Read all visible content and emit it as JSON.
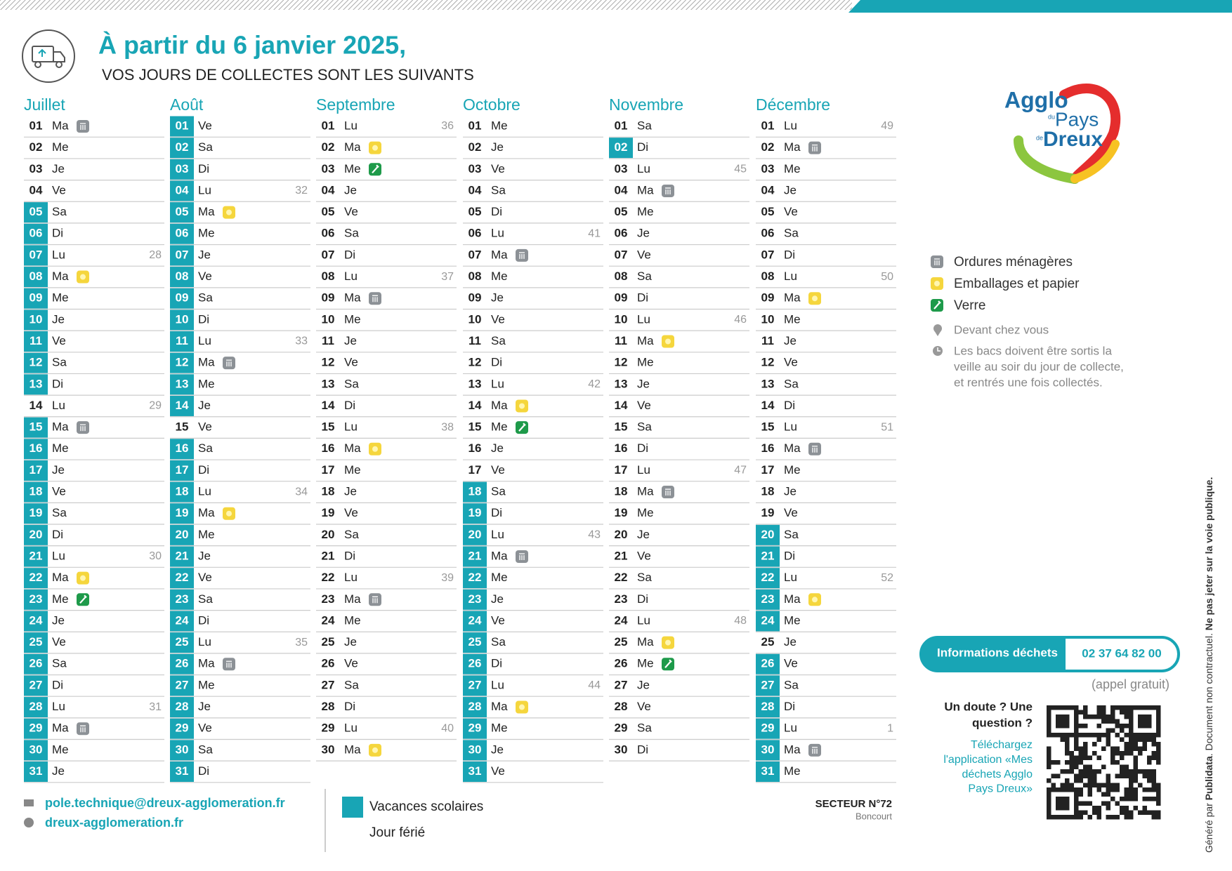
{
  "header": {
    "title": "À partir du 6 janvier 2025,",
    "subtitle": "VOS JOURS DE COLLECTES SONT LES SUIVANTS"
  },
  "logo": {
    "agglo": "Agglo",
    "du": "du",
    "pays": "Pays",
    "de": "de",
    "dreux": "Dreux"
  },
  "calendar": {
    "vacances_color": "#18a5b5",
    "months": [
      {
        "name": "Juillet",
        "days": [
          {
            "d": "01",
            "w": "Ma",
            "bin": 0
          },
          {
            "d": "02",
            "w": "Me"
          },
          {
            "d": "03",
            "w": "Je"
          },
          {
            "d": "04",
            "w": "Ve"
          },
          {
            "d": "05",
            "w": "Sa",
            "vac": true
          },
          {
            "d": "06",
            "w": "Di",
            "vac": true
          },
          {
            "d": "07",
            "w": "Lu",
            "wk": "28",
            "vac": true
          },
          {
            "d": "08",
            "w": "Ma",
            "bin": 1,
            "vac": true
          },
          {
            "d": "09",
            "w": "Me",
            "vac": true
          },
          {
            "d": "10",
            "w": "Je",
            "vac": true
          },
          {
            "d": "11",
            "w": "Ve",
            "vac": true
          },
          {
            "d": "12",
            "w": "Sa",
            "vac": true
          },
          {
            "d": "13",
            "w": "Di",
            "vac": true
          },
          {
            "d": "14",
            "w": "Lu",
            "wk": "29"
          },
          {
            "d": "15",
            "w": "Ma",
            "bin": 0,
            "vac": true
          },
          {
            "d": "16",
            "w": "Me",
            "vac": true
          },
          {
            "d": "17",
            "w": "Je",
            "vac": true
          },
          {
            "d": "18",
            "w": "Ve",
            "vac": true
          },
          {
            "d": "19",
            "w": "Sa",
            "vac": true
          },
          {
            "d": "20",
            "w": "Di",
            "vac": true
          },
          {
            "d": "21",
            "w": "Lu",
            "wk": "30",
            "vac": true
          },
          {
            "d": "22",
            "w": "Ma",
            "bin": 1,
            "vac": true
          },
          {
            "d": "23",
            "w": "Me",
            "bin": 2,
            "vac": true
          },
          {
            "d": "24",
            "w": "Je",
            "vac": true
          },
          {
            "d": "25",
            "w": "Ve",
            "vac": true
          },
          {
            "d": "26",
            "w": "Sa",
            "vac": true
          },
          {
            "d": "27",
            "w": "Di",
            "vac": true
          },
          {
            "d": "28",
            "w": "Lu",
            "wk": "31",
            "vac": true
          },
          {
            "d": "29",
            "w": "Ma",
            "bin": 0,
            "vac": true
          },
          {
            "d": "30",
            "w": "Me",
            "vac": true
          },
          {
            "d": "31",
            "w": "Je",
            "vac": true
          }
        ]
      },
      {
        "name": "Août",
        "days": [
          {
            "d": "01",
            "w": "Ve",
            "vac": true
          },
          {
            "d": "02",
            "w": "Sa",
            "vac": true
          },
          {
            "d": "03",
            "w": "Di",
            "vac": true
          },
          {
            "d": "04",
            "w": "Lu",
            "wk": "32",
            "vac": true
          },
          {
            "d": "05",
            "w": "Ma",
            "bin": 1,
            "vac": true
          },
          {
            "d": "06",
            "w": "Me",
            "vac": true
          },
          {
            "d": "07",
            "w": "Je",
            "vac": true
          },
          {
            "d": "08",
            "w": "Ve",
            "vac": true
          },
          {
            "d": "09",
            "w": "Sa",
            "vac": true
          },
          {
            "d": "10",
            "w": "Di",
            "vac": true
          },
          {
            "d": "11",
            "w": "Lu",
            "wk": "33",
            "vac": true
          },
          {
            "d": "12",
            "w": "Ma",
            "bin": 0,
            "vac": true
          },
          {
            "d": "13",
            "w": "Me",
            "vac": true
          },
          {
            "d": "14",
            "w": "Je",
            "vac": true
          },
          {
            "d": "15",
            "w": "Ve"
          },
          {
            "d": "16",
            "w": "Sa",
            "vac": true
          },
          {
            "d": "17",
            "w": "Di",
            "vac": true
          },
          {
            "d": "18",
            "w": "Lu",
            "wk": "34",
            "vac": true
          },
          {
            "d": "19",
            "w": "Ma",
            "bin": 1,
            "vac": true
          },
          {
            "d": "20",
            "w": "Me",
            "vac": true
          },
          {
            "d": "21",
            "w": "Je",
            "vac": true
          },
          {
            "d": "22",
            "w": "Ve",
            "vac": true
          },
          {
            "d": "23",
            "w": "Sa",
            "vac": true
          },
          {
            "d": "24",
            "w": "Di",
            "vac": true
          },
          {
            "d": "25",
            "w": "Lu",
            "wk": "35",
            "vac": true
          },
          {
            "d": "26",
            "w": "Ma",
            "bin": 0,
            "vac": true
          },
          {
            "d": "27",
            "w": "Me",
            "vac": true
          },
          {
            "d": "28",
            "w": "Je",
            "vac": true
          },
          {
            "d": "29",
            "w": "Ve",
            "vac": true
          },
          {
            "d": "30",
            "w": "Sa",
            "vac": true
          },
          {
            "d": "31",
            "w": "Di",
            "vac": true
          }
        ]
      },
      {
        "name": "Septembre",
        "days": [
          {
            "d": "01",
            "w": "Lu",
            "wk": "36"
          },
          {
            "d": "02",
            "w": "Ma",
            "bin": 1
          },
          {
            "d": "03",
            "w": "Me",
            "bin": 2
          },
          {
            "d": "04",
            "w": "Je"
          },
          {
            "d": "05",
            "w": "Ve"
          },
          {
            "d": "06",
            "w": "Sa"
          },
          {
            "d": "07",
            "w": "Di"
          },
          {
            "d": "08",
            "w": "Lu",
            "wk": "37"
          },
          {
            "d": "09",
            "w": "Ma",
            "bin": 0
          },
          {
            "d": "10",
            "w": "Me"
          },
          {
            "d": "11",
            "w": "Je"
          },
          {
            "d": "12",
            "w": "Ve"
          },
          {
            "d": "13",
            "w": "Sa"
          },
          {
            "d": "14",
            "w": "Di"
          },
          {
            "d": "15",
            "w": "Lu",
            "wk": "38"
          },
          {
            "d": "16",
            "w": "Ma",
            "bin": 1
          },
          {
            "d": "17",
            "w": "Me"
          },
          {
            "d": "18",
            "w": "Je"
          },
          {
            "d": "19",
            "w": "Ve"
          },
          {
            "d": "20",
            "w": "Sa"
          },
          {
            "d": "21",
            "w": "Di"
          },
          {
            "d": "22",
            "w": "Lu",
            "wk": "39"
          },
          {
            "d": "23",
            "w": "Ma",
            "bin": 0
          },
          {
            "d": "24",
            "w": "Me"
          },
          {
            "d": "25",
            "w": "Je"
          },
          {
            "d": "26",
            "w": "Ve"
          },
          {
            "d": "27",
            "w": "Sa"
          },
          {
            "d": "28",
            "w": "Di"
          },
          {
            "d": "29",
            "w": "Lu",
            "wk": "40"
          },
          {
            "d": "30",
            "w": "Ma",
            "bin": 1
          }
        ]
      },
      {
        "name": "Octobre",
        "days": [
          {
            "d": "01",
            "w": "Me"
          },
          {
            "d": "02",
            "w": "Je"
          },
          {
            "d": "03",
            "w": "Ve"
          },
          {
            "d": "04",
            "w": "Sa"
          },
          {
            "d": "05",
            "w": "Di"
          },
          {
            "d": "06",
            "w": "Lu",
            "wk": "41"
          },
          {
            "d": "07",
            "w": "Ma",
            "bin": 0
          },
          {
            "d": "08",
            "w": "Me"
          },
          {
            "d": "09",
            "w": "Je"
          },
          {
            "d": "10",
            "w": "Ve"
          },
          {
            "d": "11",
            "w": "Sa"
          },
          {
            "d": "12",
            "w": "Di"
          },
          {
            "d": "13",
            "w": "Lu",
            "wk": "42"
          },
          {
            "d": "14",
            "w": "Ma",
            "bin": 1
          },
          {
            "d": "15",
            "w": "Me",
            "bin": 2
          },
          {
            "d": "16",
            "w": "Je"
          },
          {
            "d": "17",
            "w": "Ve"
          },
          {
            "d": "18",
            "w": "Sa",
            "vac": true
          },
          {
            "d": "19",
            "w": "Di",
            "vac": true
          },
          {
            "d": "20",
            "w": "Lu",
            "wk": "43",
            "vac": true
          },
          {
            "d": "21",
            "w": "Ma",
            "bin": 0,
            "vac": true
          },
          {
            "d": "22",
            "w": "Me",
            "vac": true
          },
          {
            "d": "23",
            "w": "Je",
            "vac": true
          },
          {
            "d": "24",
            "w": "Ve",
            "vac": true
          },
          {
            "d": "25",
            "w": "Sa",
            "vac": true
          },
          {
            "d": "26",
            "w": "Di",
            "vac": true
          },
          {
            "d": "27",
            "w": "Lu",
            "wk": "44",
            "vac": true
          },
          {
            "d": "28",
            "w": "Ma",
            "bin": 1,
            "vac": true
          },
          {
            "d": "29",
            "w": "Me",
            "vac": true
          },
          {
            "d": "30",
            "w": "Je",
            "vac": true
          },
          {
            "d": "31",
            "w": "Ve",
            "vac": true
          }
        ]
      },
      {
        "name": "Novembre",
        "days": [
          {
            "d": "01",
            "w": "Sa"
          },
          {
            "d": "02",
            "w": "Di",
            "vac": true
          },
          {
            "d": "03",
            "w": "Lu",
            "wk": "45"
          },
          {
            "d": "04",
            "w": "Ma",
            "bin": 0
          },
          {
            "d": "05",
            "w": "Me"
          },
          {
            "d": "06",
            "w": "Je"
          },
          {
            "d": "07",
            "w": "Ve"
          },
          {
            "d": "08",
            "w": "Sa"
          },
          {
            "d": "09",
            "w": "Di"
          },
          {
            "d": "10",
            "w": "Lu",
            "wk": "46"
          },
          {
            "d": "11",
            "w": "Ma",
            "bin": 1
          },
          {
            "d": "12",
            "w": "Me"
          },
          {
            "d": "13",
            "w": "Je"
          },
          {
            "d": "14",
            "w": "Ve"
          },
          {
            "d": "15",
            "w": "Sa"
          },
          {
            "d": "16",
            "w": "Di"
          },
          {
            "d": "17",
            "w": "Lu",
            "wk": "47"
          },
          {
            "d": "18",
            "w": "Ma",
            "bin": 0
          },
          {
            "d": "19",
            "w": "Me"
          },
          {
            "d": "20",
            "w": "Je"
          },
          {
            "d": "21",
            "w": "Ve"
          },
          {
            "d": "22",
            "w": "Sa"
          },
          {
            "d": "23",
            "w": "Di"
          },
          {
            "d": "24",
            "w": "Lu",
            "wk": "48"
          },
          {
            "d": "25",
            "w": "Ma",
            "bin": 1
          },
          {
            "d": "26",
            "w": "Me",
            "bin": 2
          },
          {
            "d": "27",
            "w": "Je"
          },
          {
            "d": "28",
            "w": "Ve"
          },
          {
            "d": "29",
            "w": "Sa"
          },
          {
            "d": "30",
            "w": "Di"
          }
        ]
      },
      {
        "name": "Décembre",
        "days": [
          {
            "d": "01",
            "w": "Lu",
            "wk": "49"
          },
          {
            "d": "02",
            "w": "Ma",
            "bin": 0
          },
          {
            "d": "03",
            "w": "Me"
          },
          {
            "d": "04",
            "w": "Je"
          },
          {
            "d": "05",
            "w": "Ve"
          },
          {
            "d": "06",
            "w": "Sa"
          },
          {
            "d": "07",
            "w": "Di"
          },
          {
            "d": "08",
            "w": "Lu",
            "wk": "50"
          },
          {
            "d": "09",
            "w": "Ma",
            "bin": 1
          },
          {
            "d": "10",
            "w": "Me"
          },
          {
            "d": "11",
            "w": "Je"
          },
          {
            "d": "12",
            "w": "Ve"
          },
          {
            "d": "13",
            "w": "Sa"
          },
          {
            "d": "14",
            "w": "Di"
          },
          {
            "d": "15",
            "w": "Lu",
            "wk": "51"
          },
          {
            "d": "16",
            "w": "Ma",
            "bin": 0
          },
          {
            "d": "17",
            "w": "Me"
          },
          {
            "d": "18",
            "w": "Je"
          },
          {
            "d": "19",
            "w": "Ve"
          },
          {
            "d": "20",
            "w": "Sa",
            "vac": true
          },
          {
            "d": "21",
            "w": "Di",
            "vac": true
          },
          {
            "d": "22",
            "w": "Lu",
            "wk": "52",
            "vac": true
          },
          {
            "d": "23",
            "w": "Ma",
            "bin": 1,
            "vac": true
          },
          {
            "d": "24",
            "w": "Me",
            "vac": true
          },
          {
            "d": "25",
            "w": "Je"
          },
          {
            "d": "26",
            "w": "Ve",
            "vac": true
          },
          {
            "d": "27",
            "w": "Sa",
            "vac": true
          },
          {
            "d": "28",
            "w": "Di",
            "vac": true
          },
          {
            "d": "29",
            "w": "Lu",
            "wk": "1",
            "vac": true
          },
          {
            "d": "30",
            "w": "Ma",
            "bin": 0,
            "vac": true
          },
          {
            "d": "31",
            "w": "Me",
            "vac": true
          }
        ]
      }
    ]
  },
  "legend": {
    "bins": [
      {
        "label": "Ordures ménagères",
        "color": "#8c9196"
      },
      {
        "label": "Emballages et papier",
        "color": "#f5d63d"
      },
      {
        "label": "Verre",
        "color": "#1e9a4a"
      }
    ],
    "place": "Devant chez vous",
    "note": [
      "Les bacs doivent être sortis la",
      "veille au soir du jour de collecte,",
      "et rentrés une fois collectés."
    ]
  },
  "info": {
    "label": "Informations déchets",
    "phone": "02 37 64 82 00",
    "free": "(appel gratuit)",
    "question": [
      "Un doute ? Une",
      "question ?"
    ],
    "app": [
      "Téléchargez",
      "l'application «Mes",
      "déchets Agglo",
      "Pays Dreux»"
    ]
  },
  "footer": {
    "email": "pole.technique@dreux-agglomeration.fr",
    "web": "dreux-agglomeration.fr",
    "vacances": "Vacances scolaires",
    "ferie": "Jour férié",
    "sector": "SECTEUR N°72",
    "town": "Boncourt"
  },
  "side": {
    "by": "Généré par ",
    "brand": "Publidata",
    "disclaimer": ". Document non contractuel. ",
    "warning": "Ne pas jeter sur la voie publique."
  }
}
